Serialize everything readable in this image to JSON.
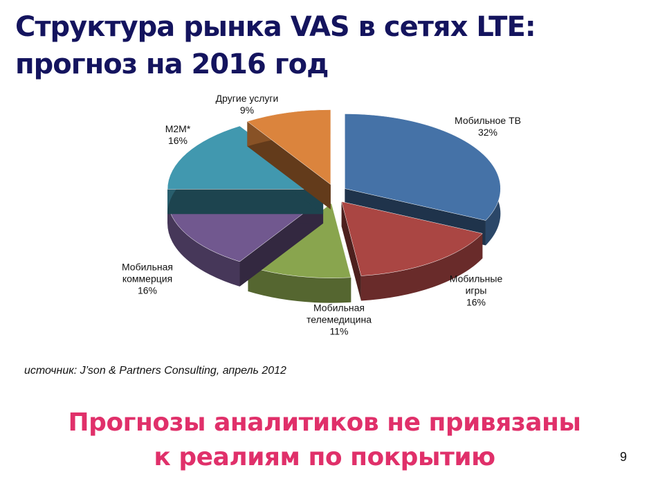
{
  "chart_data": {
    "type": "pie",
    "title": "Структура рынка VAS в сетях LTE:\nпрогноз на 2016 год",
    "categories": [
      "Мобильное ТВ",
      "Мобильные\nигры",
      "Мобильная\nтелемедицина",
      "Мобильная\nкоммерция",
      "M2M*",
      "Другие услуги"
    ],
    "values": [
      32,
      16,
      11,
      16,
      16,
      9
    ],
    "value_labels": [
      "32%",
      "16%",
      "11%",
      "16%",
      "16%",
      "9%"
    ],
    "colors": [
      "#4572a7",
      "#aa4643",
      "#89a54e",
      "#71588f",
      "#4198af",
      "#db843d"
    ]
  },
  "source": "источник: J’son & Partners Consulting, апрель 2012",
  "message": "Прогнозы аналитиков не привязаны\nк реалиям по покрытию",
  "page_number": "9"
}
